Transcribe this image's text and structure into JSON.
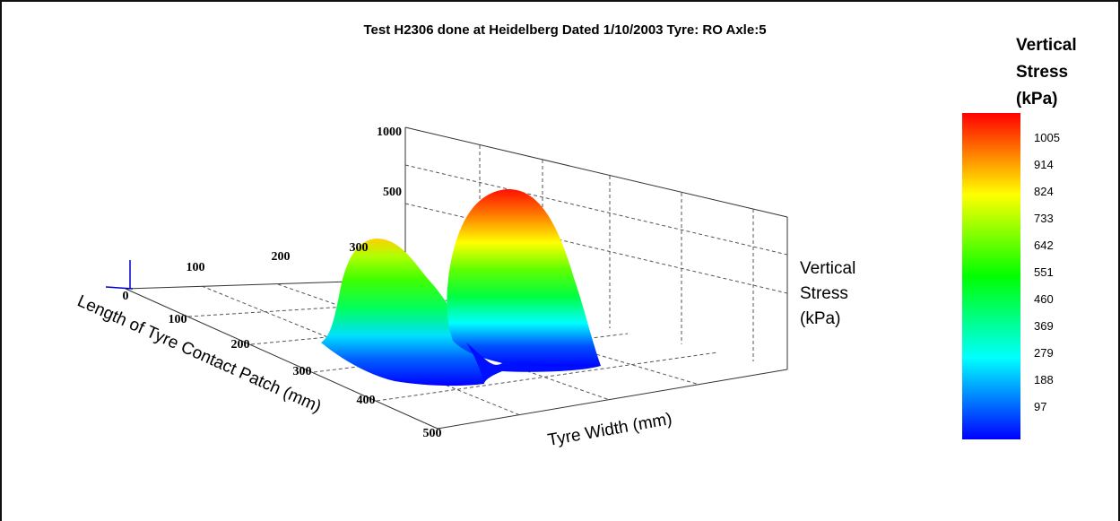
{
  "chart_data": {
    "type": "surface3d",
    "title": "Test H2306 done at Heidelberg Dated 1/10/2003 Tyre: RO Axle:5",
    "xlabel": "Tyre Width (mm)",
    "ylabel": "Length of Tyre Contact Patch (mm)",
    "zlabel": "Vertical Stress (kPa)",
    "zlabel_lines": [
      "Vertical",
      "Stress",
      "(kPa)"
    ],
    "x_ticks": [
      "100",
      "200",
      "300"
    ],
    "y_ticks": [
      "0",
      "100",
      "200",
      "300",
      "400",
      "500"
    ],
    "z_ticks": [
      "500",
      "1000"
    ],
    "zlim": [
      0,
      1000
    ],
    "grid": true,
    "series": [
      {
        "peak_center_length_mm": 270,
        "peak_center_width_mm": 215,
        "peak_stress_kpa": 760
      },
      {
        "peak_center_length_mm": 290,
        "peak_center_width_mm": 310,
        "peak_stress_kpa": 1005
      }
    ],
    "colorbar": {
      "title_lines": [
        "Vertical",
        "Stress",
        "(kPa)"
      ],
      "ticks": [
        "1005",
        "914",
        "824",
        "733",
        "642",
        "551",
        "460",
        "369",
        "279",
        "188",
        "97"
      ],
      "colors": [
        "#0000ff",
        "#0080ff",
        "#00ffff",
        "#00ff80",
        "#00ff00",
        "#80ff00",
        "#ffff00",
        "#ff8000",
        "#ff0000"
      ]
    }
  }
}
